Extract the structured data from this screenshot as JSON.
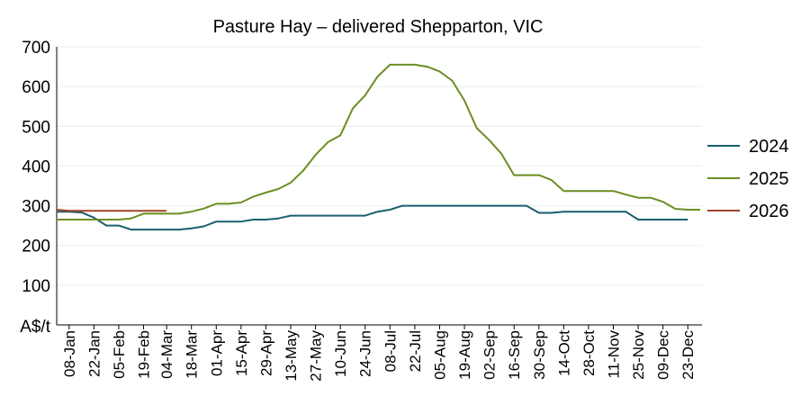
{
  "chart_data": {
    "type": "line",
    "title": "Pasture Hay – delivered Shepparton, VIC",
    "ylabel": "A$/t",
    "xlabel": "",
    "ylim": [
      0,
      700
    ],
    "yticks": [
      100,
      200,
      300,
      400,
      500,
      600,
      700
    ],
    "x_tick_labels": [
      "08-Jan",
      "22-Jan",
      "05-Feb",
      "19-Feb",
      "04-Mar",
      "18-Mar",
      "01-Apr",
      "15-Apr",
      "29-Apr",
      "13-May",
      "27-May",
      "10-Jun",
      "24-Jun",
      "08-Jul",
      "22-Jul",
      "05-Aug",
      "19-Aug",
      "02-Sep",
      "16-Sep",
      "30-Sep",
      "14-Oct",
      "28-Oct",
      "11-Nov",
      "25-Nov",
      "09-Dec",
      "23-Dec"
    ],
    "grid": true,
    "legend_position": "right",
    "series": [
      {
        "name": "2024",
        "color": "#1b5e6e",
        "points": [
          [
            "01-Jan",
            285
          ],
          [
            "08-Jan",
            285
          ],
          [
            "15-Jan",
            283
          ],
          [
            "22-Jan",
            270
          ],
          [
            "29-Jan",
            250
          ],
          [
            "05-Feb",
            250
          ],
          [
            "12-Feb",
            240
          ],
          [
            "19-Feb",
            240
          ],
          [
            "26-Feb",
            240
          ],
          [
            "04-Mar",
            240
          ],
          [
            "11-Mar",
            240
          ],
          [
            "18-Mar",
            243
          ],
          [
            "25-Mar",
            248
          ],
          [
            "01-Apr",
            260
          ],
          [
            "08-Apr",
            260
          ],
          [
            "15-Apr",
            260
          ],
          [
            "22-Apr",
            265
          ],
          [
            "29-Apr",
            265
          ],
          [
            "06-May",
            268
          ],
          [
            "13-May",
            275
          ],
          [
            "20-May",
            275
          ],
          [
            "27-May",
            275
          ],
          [
            "03-Jun",
            275
          ],
          [
            "10-Jun",
            275
          ],
          [
            "17-Jun",
            275
          ],
          [
            "24-Jun",
            275
          ],
          [
            "01-Jul",
            285
          ],
          [
            "08-Jul",
            290
          ],
          [
            "15-Jul",
            300
          ],
          [
            "22-Jul",
            300
          ],
          [
            "29-Jul",
            300
          ],
          [
            "05-Aug",
            300
          ],
          [
            "12-Aug",
            300
          ],
          [
            "19-Aug",
            300
          ],
          [
            "26-Aug",
            300
          ],
          [
            "02-Sep",
            300
          ],
          [
            "09-Sep",
            300
          ],
          [
            "16-Sep",
            300
          ],
          [
            "23-Sep",
            300
          ],
          [
            "30-Sep",
            282
          ],
          [
            "07-Oct",
            282
          ],
          [
            "14-Oct",
            285
          ],
          [
            "21-Oct",
            285
          ],
          [
            "28-Oct",
            285
          ],
          [
            "04-Nov",
            285
          ],
          [
            "11-Nov",
            285
          ],
          [
            "18-Nov",
            285
          ],
          [
            "25-Nov",
            265
          ],
          [
            "02-Dec",
            265
          ],
          [
            "09-Dec",
            265
          ],
          [
            "16-Dec",
            265
          ],
          [
            "23-Dec",
            265
          ]
        ]
      },
      {
        "name": "2025",
        "color": "#6b8e23",
        "points": [
          [
            "01-Jan",
            265
          ],
          [
            "08-Jan",
            265
          ],
          [
            "15-Jan",
            265
          ],
          [
            "22-Jan",
            265
          ],
          [
            "29-Jan",
            265
          ],
          [
            "05-Feb",
            265
          ],
          [
            "12-Feb",
            268
          ],
          [
            "19-Feb",
            280
          ],
          [
            "26-Feb",
            280
          ],
          [
            "04-Mar",
            280
          ],
          [
            "11-Mar",
            280
          ],
          [
            "18-Mar",
            285
          ],
          [
            "25-Mar",
            293
          ],
          [
            "01-Apr",
            305
          ],
          [
            "08-Apr",
            305
          ],
          [
            "15-Apr",
            308
          ],
          [
            "22-Apr",
            323
          ],
          [
            "29-Apr",
            333
          ],
          [
            "06-May",
            342
          ],
          [
            "13-May",
            358
          ],
          [
            "20-May",
            388
          ],
          [
            "27-May",
            428
          ],
          [
            "03-Jun",
            460
          ],
          [
            "10-Jun",
            477
          ],
          [
            "17-Jun",
            545
          ],
          [
            "24-Jun",
            578
          ],
          [
            "01-Jul",
            625
          ],
          [
            "08-Jul",
            655
          ],
          [
            "15-Jul",
            655
          ],
          [
            "22-Jul",
            655
          ],
          [
            "29-Jul",
            650
          ],
          [
            "05-Aug",
            638
          ],
          [
            "12-Aug",
            615
          ],
          [
            "19-Aug",
            565
          ],
          [
            "26-Aug",
            495
          ],
          [
            "02-Sep",
            465
          ],
          [
            "09-Sep",
            430
          ],
          [
            "16-Sep",
            377
          ],
          [
            "23-Sep",
            377
          ],
          [
            "30-Sep",
            377
          ],
          [
            "07-Oct",
            365
          ],
          [
            "14-Oct",
            337
          ],
          [
            "21-Oct",
            337
          ],
          [
            "28-Oct",
            337
          ],
          [
            "04-Nov",
            337
          ],
          [
            "11-Nov",
            337
          ],
          [
            "18-Nov",
            328
          ],
          [
            "25-Nov",
            320
          ],
          [
            "02-Dec",
            320
          ],
          [
            "09-Dec",
            310
          ],
          [
            "16-Dec",
            292
          ],
          [
            "23-Dec",
            290
          ],
          [
            "30-Dec",
            290
          ]
        ]
      },
      {
        "name": "2026",
        "color": "#a0442a",
        "points": [
          [
            "01-Jan",
            290
          ],
          [
            "08-Jan",
            287
          ],
          [
            "15-Jan",
            287
          ],
          [
            "22-Jan",
            287
          ],
          [
            "29-Jan",
            287
          ],
          [
            "05-Feb",
            287
          ],
          [
            "12-Feb",
            287
          ],
          [
            "19-Feb",
            287
          ],
          [
            "26-Feb",
            287
          ],
          [
            "04-Mar",
            287
          ]
        ]
      }
    ]
  }
}
